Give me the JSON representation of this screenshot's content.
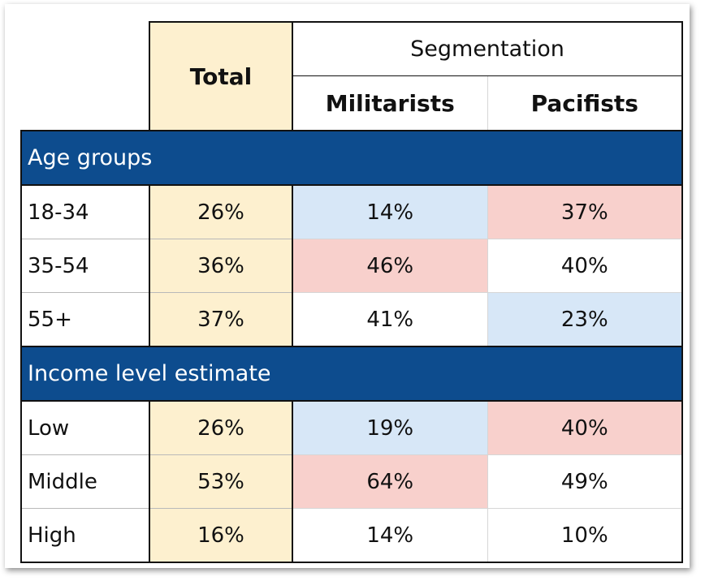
{
  "header": {
    "total_label": "Total",
    "segmentation_label": "Segmentation",
    "militarists_label": "Militarists",
    "pacifists_label": "Pacifists"
  },
  "colors": {
    "section_bg": "#0d4c8e",
    "total_bg": "#fdf0cf",
    "highlight_low": "#d7e7f7",
    "highlight_high": "#f8d0cc"
  },
  "sections": [
    {
      "title": "Age groups",
      "rows": [
        {
          "label": "18-34",
          "total": "26%",
          "militarists": "14%",
          "pacifists": "37%",
          "mil_hl": "blue",
          "pac_hl": "red"
        },
        {
          "label": "35-54",
          "total": "36%",
          "militarists": "46%",
          "pacifists": "40%",
          "mil_hl": "red",
          "pac_hl": ""
        },
        {
          "label": "55+",
          "total": "37%",
          "militarists": "41%",
          "pacifists": "23%",
          "mil_hl": "",
          "pac_hl": "blue"
        }
      ]
    },
    {
      "title": "Income level estimate",
      "rows": [
        {
          "label": "Low",
          "total": "26%",
          "militarists": "19%",
          "pacifists": "40%",
          "mil_hl": "blue",
          "pac_hl": "red"
        },
        {
          "label": "Middle",
          "total": "53%",
          "militarists": "64%",
          "pacifists": "49%",
          "mil_hl": "red",
          "pac_hl": ""
        },
        {
          "label": "High",
          "total": "16%",
          "militarists": "14%",
          "pacifists": "10%",
          "mil_hl": "",
          "pac_hl": ""
        }
      ]
    }
  ]
}
